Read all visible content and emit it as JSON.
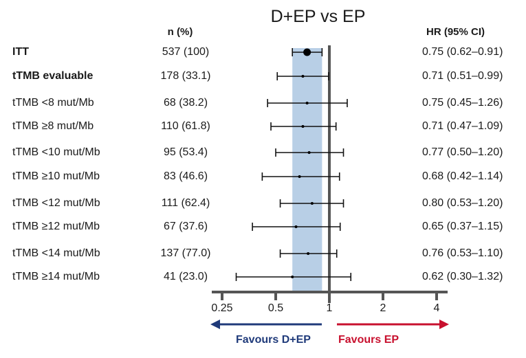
{
  "chart_data": {
    "type": "forest",
    "title": "D+EP vs EP",
    "columns": {
      "n_header": "n (%)",
      "hr_header": "HR (95% CI)"
    },
    "xscale": "log2",
    "xlim": [
      0.21,
      4.6
    ],
    "xticks": [
      0.25,
      0.5,
      1,
      2,
      4
    ],
    "xtick_labels": [
      "0.25",
      "0.5",
      "1",
      "2",
      "4"
    ],
    "reference_line": 1,
    "shaded_band": {
      "from": 0.62,
      "to": 0.91,
      "color": "#b8cfe6",
      "note": "ITT 95% CI"
    },
    "rows": [
      {
        "label": "ITT",
        "bold": true,
        "n_pct": "537 (100)",
        "hr": 0.75,
        "lo": 0.62,
        "hi": 0.91,
        "hr_text": "0.75 (0.62–0.91)",
        "marker": "large"
      },
      {
        "label": "tTMB evaluable",
        "bold": true,
        "n_pct": "178 (33.1)",
        "hr": 0.71,
        "lo": 0.51,
        "hi": 0.99,
        "hr_text": "0.71 (0.51–0.99)",
        "marker": "small"
      },
      {
        "label": "tTMB <8 mut/Mb",
        "bold": false,
        "n_pct": "68 (38.2)",
        "hr": 0.75,
        "lo": 0.45,
        "hi": 1.26,
        "hr_text": "0.75 (0.45–1.26)",
        "marker": "small"
      },
      {
        "label": "tTMB ≥8 mut/Mb",
        "bold": false,
        "n_pct": "110 (61.8)",
        "hr": 0.71,
        "lo": 0.47,
        "hi": 1.09,
        "hr_text": "0.71 (0.47–1.09)",
        "marker": "small"
      },
      {
        "label": "tTMB <10 mut/Mb",
        "bold": false,
        "n_pct": "95 (53.4)",
        "hr": 0.77,
        "lo": 0.5,
        "hi": 1.2,
        "hr_text": "0.77 (0.50–1.20)",
        "marker": "small"
      },
      {
        "label": "tTMB ≥10 mut/Mb",
        "bold": false,
        "n_pct": "83 (46.6)",
        "hr": 0.68,
        "lo": 0.42,
        "hi": 1.14,
        "hr_text": "0.68 (0.42–1.14)",
        "marker": "small"
      },
      {
        "label": "tTMB <12 mut/Mb",
        "bold": false,
        "n_pct": "111 (62.4)",
        "hr": 0.8,
        "lo": 0.53,
        "hi": 1.2,
        "hr_text": "0.80 (0.53–1.20)",
        "marker": "small"
      },
      {
        "label": "tTMB ≥12 mut/Mb",
        "bold": false,
        "n_pct": "67 (37.6)",
        "hr": 0.65,
        "lo": 0.37,
        "hi": 1.15,
        "hr_text": "0.65 (0.37–1.15)",
        "marker": "small"
      },
      {
        "label": "tTMB <14 mut/Mb",
        "bold": false,
        "n_pct": "137 (77.0)",
        "hr": 0.76,
        "lo": 0.53,
        "hi": 1.1,
        "hr_text": "0.76 (0.53–1.10)",
        "marker": "small"
      },
      {
        "label": "tTMB ≥14 mut/Mb",
        "bold": false,
        "n_pct": "41 (23.0)",
        "hr": 0.62,
        "lo": 0.3,
        "hi": 1.32,
        "hr_text": "0.62 (0.30–1.32)",
        "marker": "small"
      }
    ],
    "annotations": {
      "favours_left": {
        "text": "Favours D+EP",
        "color": "#1f3a7a"
      },
      "favours_right": {
        "text": "Favours EP",
        "color": "#c8102e"
      }
    }
  }
}
